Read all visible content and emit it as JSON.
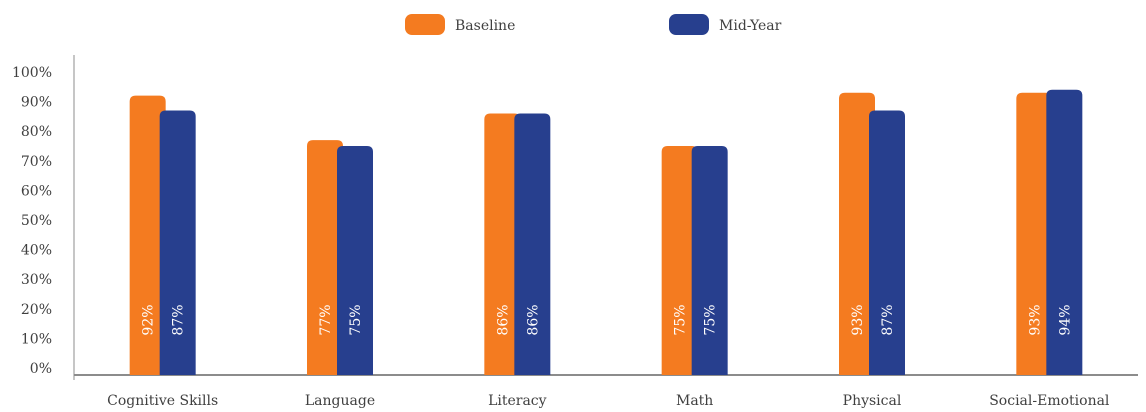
{
  "chart_data": {
    "type": "bar",
    "categories": [
      "Cognitive Skills",
      "Language",
      "Literacy",
      "Math",
      "Physical",
      "Social-Emotional"
    ],
    "series": [
      {
        "name": "Baseline",
        "color": "#F47B20",
        "values": [
          92,
          77,
          86,
          75,
          93,
          93
        ],
        "labels": [
          "92%",
          "77%",
          "86%",
          "75%",
          "93%",
          "93%"
        ]
      },
      {
        "name": "Mid-Year",
        "color": "#273F8E",
        "values": [
          87,
          75,
          86,
          75,
          87,
          94
        ],
        "labels": [
          "87%",
          "75%",
          "86%",
          "75%",
          "87%",
          "94%"
        ]
      }
    ],
    "ylim": [
      0,
      100
    ],
    "y_ticks": [
      "0%",
      "10%",
      "20%",
      "30%",
      "40%",
      "50%",
      "60%",
      "70%",
      "80%",
      "90%",
      "100%"
    ],
    "y_tick_values": [
      0,
      10,
      20,
      30,
      40,
      50,
      60,
      70,
      80,
      90,
      100
    ],
    "legend_position": "top-center",
    "grid": false,
    "title": "",
    "xlabel": "",
    "ylabel": ""
  }
}
